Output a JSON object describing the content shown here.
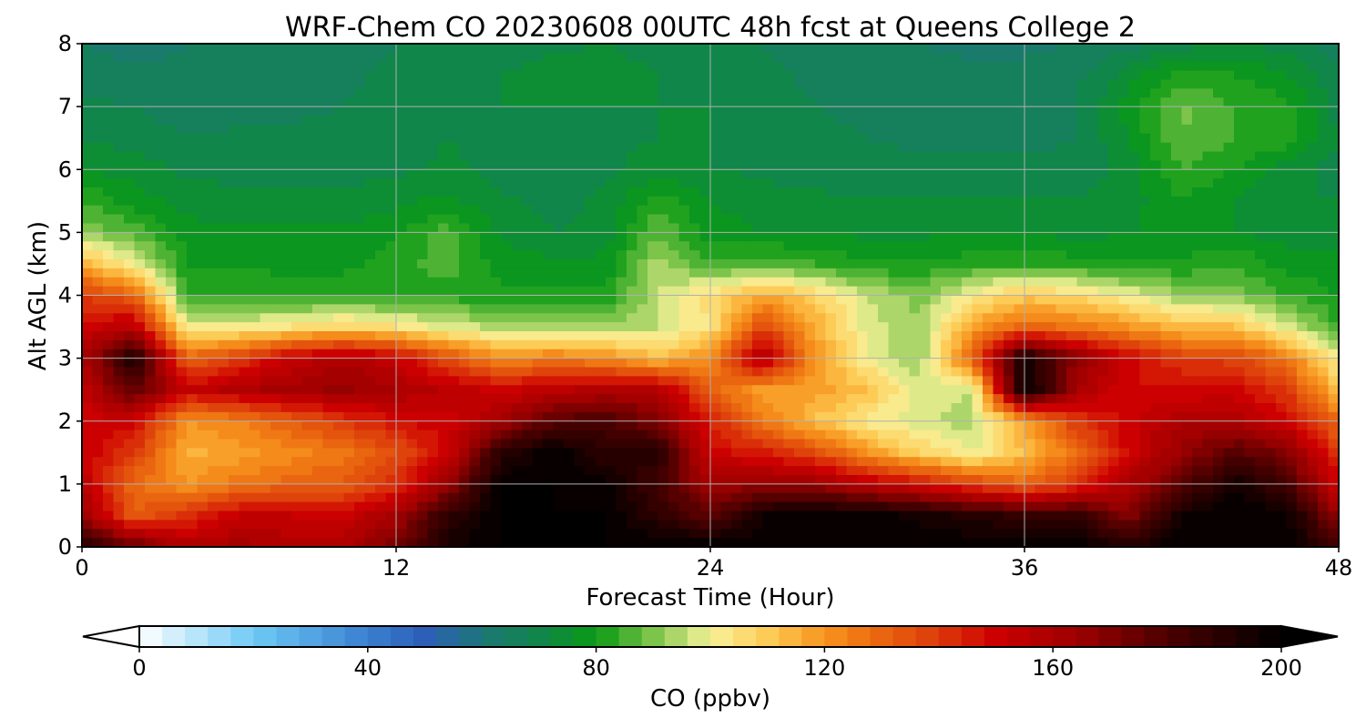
{
  "chart_data": {
    "type": "heatmap",
    "title": "WRF-Chem CO  20230608 00UTC 48h fcst at Queens College 2",
    "xlabel": "Forecast Time (Hour)",
    "ylabel": "Alt AGL (km)",
    "xlim": [
      0,
      48
    ],
    "ylim": [
      0,
      8
    ],
    "x_ticks": [
      0,
      12,
      24,
      36,
      48
    ],
    "y_ticks": [
      0,
      1,
      2,
      3,
      4,
      5,
      6,
      7,
      8
    ],
    "grid": true,
    "colorbar": {
      "label": "CO  (ppbv)",
      "orientation": "horizontal",
      "location": "bottom",
      "min": 0,
      "max": 200,
      "step": 4,
      "extend": "both",
      "ticks": [
        0,
        40,
        80,
        120,
        160,
        200
      ],
      "color_stops": [
        {
          "value": 0,
          "color": "#ffffff"
        },
        {
          "value": 20,
          "color": "#6ecaf5"
        },
        {
          "value": 40,
          "color": "#3a7fd0"
        },
        {
          "value": 50,
          "color": "#2d5fb8"
        },
        {
          "value": 62,
          "color": "#1a7a6c"
        },
        {
          "value": 70,
          "color": "#10864a"
        },
        {
          "value": 80,
          "color": "#0a9a14"
        },
        {
          "value": 90,
          "color": "#7cc44a"
        },
        {
          "value": 100,
          "color": "#f7f29a"
        },
        {
          "value": 110,
          "color": "#fdcc57"
        },
        {
          "value": 120,
          "color": "#f7941d"
        },
        {
          "value": 130,
          "color": "#e9650f"
        },
        {
          "value": 140,
          "color": "#dd3a0b"
        },
        {
          "value": 150,
          "color": "#cc0000"
        },
        {
          "value": 165,
          "color": "#9a0000"
        },
        {
          "value": 180,
          "color": "#4c0000"
        },
        {
          "value": 200,
          "color": "#000000"
        }
      ]
    },
    "field": {
      "description_units": "ppbv",
      "times": [
        0,
        2,
        4,
        6,
        8,
        10,
        12,
        14,
        16,
        18,
        20,
        22,
        24,
        26,
        28,
        30,
        32,
        34,
        36,
        38,
        40,
        42,
        44,
        46,
        48
      ],
      "altitudes": [
        0.0,
        0.5,
        1.0,
        1.5,
        2.0,
        2.5,
        3.0,
        3.5,
        4.0,
        4.5,
        5.0,
        5.5,
        6.0,
        6.5,
        7.0,
        7.5,
        8.0
      ],
      "values": [
        [
          190,
          176,
          158,
          162,
          158,
          160,
          172,
          195,
          200,
          200,
          200,
          200,
          200,
          200,
          200,
          200,
          200,
          200,
          200,
          200,
          192,
          200,
          200,
          200,
          185
        ],
        [
          165,
          132,
          142,
          152,
          152,
          150,
          162,
          188,
          200,
          200,
          200,
          188,
          176,
          196,
          200,
          198,
          194,
          190,
          186,
          186,
          168,
          196,
          200,
          198,
          165
        ],
        [
          155,
          128,
          120,
          126,
          130,
          132,
          142,
          165,
          200,
          200,
          198,
          182,
          162,
          166,
          165,
          155,
          148,
          138,
          130,
          140,
          160,
          176,
          196,
          182,
          150
        ],
        [
          152,
          140,
          115,
          118,
          122,
          126,
          135,
          150,
          188,
          200,
          188,
          190,
          150,
          145,
          136,
          120,
          108,
          100,
          112,
          128,
          150,
          165,
          178,
          170,
          140
        ],
        [
          150,
          150,
          120,
          124,
          132,
          140,
          148,
          150,
          162,
          178,
          182,
          170,
          145,
          125,
          112,
          102,
          97,
          94,
          118,
          140,
          150,
          160,
          160,
          150,
          128
        ],
        [
          152,
          178,
          152,
          158,
          162,
          165,
          160,
          155,
          150,
          155,
          158,
          158,
          132,
          118,
          118,
          112,
          98,
          96,
          200,
          160,
          148,
          148,
          150,
          140,
          112
        ],
        [
          158,
          194,
          130,
          140,
          152,
          160,
          152,
          135,
          122,
          125,
          122,
          112,
          122,
          160,
          120,
          100,
          92,
          132,
          196,
          168,
          150,
          140,
          138,
          126,
          100
        ],
        [
          150,
          156,
          100,
          100,
          104,
          108,
          104,
          98,
          94,
          93,
          92,
          96,
          104,
          138,
          116,
          98,
          92,
          118,
          130,
          126,
          120,
          112,
          112,
          98,
          84
        ],
        [
          140,
          130,
          84,
          83,
          82,
          82,
          82,
          82,
          81,
          81,
          81,
          96,
          106,
          116,
          108,
          96,
          90,
          102,
          110,
          106,
          100,
          92,
          90,
          84,
          80
        ],
        [
          115,
          100,
          80,
          79,
          79,
          79,
          82,
          86,
          78,
          77,
          77,
          94,
          84,
          86,
          84,
          80,
          80,
          82,
          84,
          82,
          80,
          80,
          84,
          78,
          77
        ],
        [
          92,
          86,
          78,
          77,
          77,
          77,
          79,
          86,
          75,
          72,
          74,
          88,
          78,
          76,
          76,
          75,
          75,
          76,
          76,
          74,
          76,
          78,
          76,
          74,
          74
        ],
        [
          84,
          78,
          74,
          73,
          73,
          73,
          75,
          77,
          73,
          70,
          73,
          82,
          76,
          74,
          73,
          72,
          72,
          72,
          72,
          72,
          74,
          80,
          76,
          72,
          72
        ],
        [
          76,
          74,
          71,
          71,
          70,
          70,
          71,
          73,
          70,
          68,
          71,
          74,
          72,
          71,
          70,
          70,
          69,
          69,
          69,
          69,
          74,
          84,
          80,
          74,
          70
        ],
        [
          72,
          70,
          68,
          69,
          69,
          69,
          70,
          72,
          70,
          70,
          71,
          72,
          72,
          70,
          69,
          68,
          67,
          67,
          67,
          68,
          76,
          88,
          84,
          82,
          72
        ],
        [
          69,
          68,
          66,
          66,
          67,
          68,
          70,
          72,
          72,
          72,
          72,
          72,
          72,
          70,
          68,
          67,
          66,
          66,
          66,
          68,
          78,
          89,
          84,
          82,
          70
        ],
        [
          66,
          65,
          65,
          65,
          66,
          67,
          69,
          70,
          72,
          74,
          74,
          72,
          71,
          69,
          67,
          66,
          65,
          65,
          65,
          67,
          74,
          82,
          80,
          76,
          68
        ],
        [
          64,
          62,
          64,
          64,
          65,
          66,
          68,
          69,
          70,
          71,
          72,
          70,
          69,
          68,
          66,
          65,
          64,
          63,
          63,
          64,
          66,
          70,
          72,
          70,
          66
        ]
      ]
    }
  }
}
